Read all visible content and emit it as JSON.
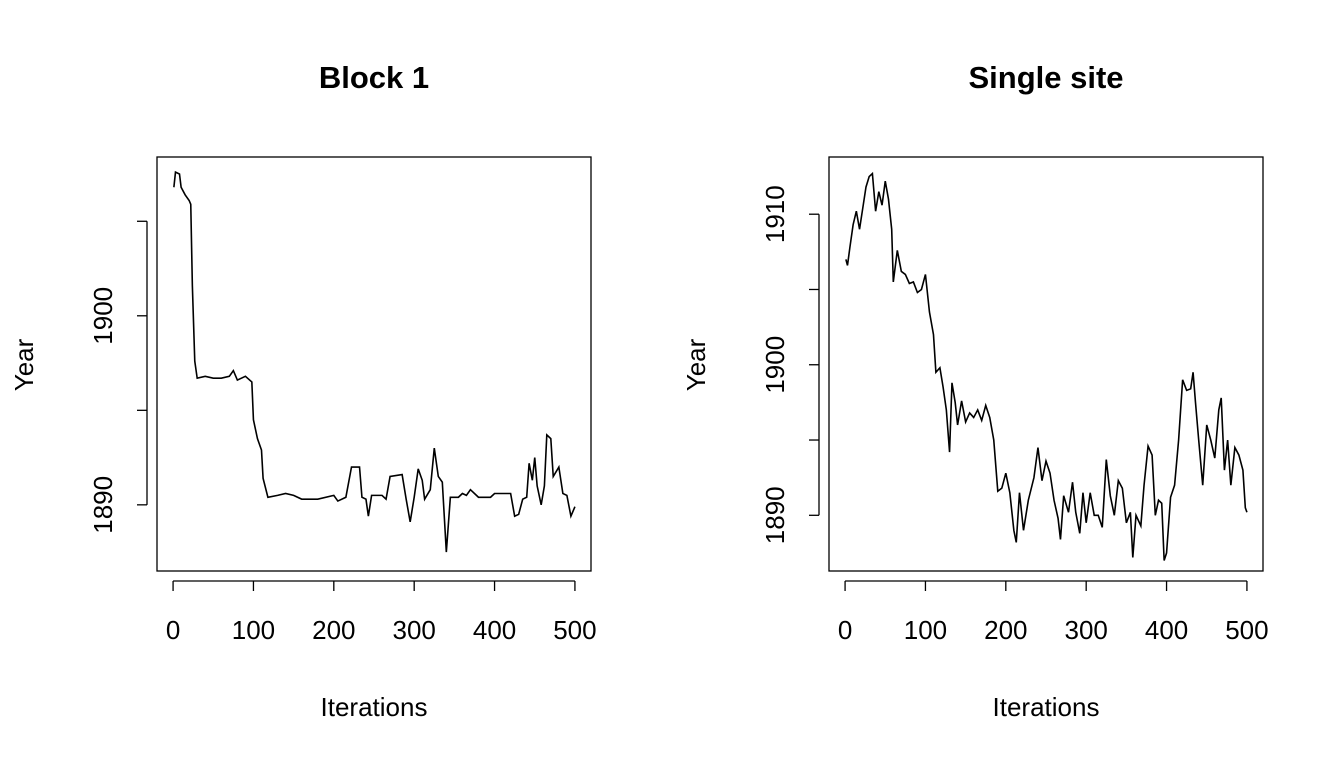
{
  "chart_data": [
    {
      "type": "line",
      "title": "Block 1",
      "xlabel": "Iterations",
      "ylabel": "Year",
      "color": "#000000",
      "x": [
        1,
        3,
        8,
        10,
        15,
        20,
        22,
        24,
        27,
        30,
        40,
        50,
        60,
        70,
        75,
        80,
        90,
        98,
        100,
        105,
        110,
        112,
        118,
        130,
        140,
        150,
        160,
        180,
        200,
        205,
        215,
        222,
        232,
        235,
        240,
        243,
        247,
        260,
        265,
        270,
        285,
        290,
        295,
        300,
        305,
        310,
        313,
        320,
        325,
        330,
        335,
        340,
        345,
        355,
        360,
        365,
        370,
        380,
        395,
        400,
        420,
        425,
        430,
        435,
        440,
        443,
        447,
        450,
        453,
        458,
        462,
        465,
        470,
        473,
        480,
        485,
        490,
        495,
        500
      ],
      "values": [
        1906.8,
        1907.6,
        1907.5,
        1906.8,
        1906.4,
        1906.1,
        1905.9,
        1901.6,
        1897.6,
        1896.7,
        1896.8,
        1896.7,
        1896.7,
        1896.8,
        1897.1,
        1896.6,
        1896.8,
        1896.5,
        1894.5,
        1893.5,
        1892.9,
        1891.4,
        1890.4,
        1890.5,
        1890.6,
        1890.5,
        1890.3,
        1890.3,
        1890.5,
        1890.2,
        1890.4,
        1892.0,
        1892.0,
        1890.4,
        1890.3,
        1889.4,
        1890.5,
        1890.5,
        1890.3,
        1891.5,
        1891.6,
        1890.3,
        1889.1,
        1890.4,
        1891.9,
        1891.3,
        1890.3,
        1890.8,
        1893.0,
        1891.5,
        1891.2,
        1887.5,
        1890.4,
        1890.4,
        1890.6,
        1890.5,
        1890.8,
        1890.4,
        1890.4,
        1890.6,
        1890.6,
        1889.4,
        1889.5,
        1890.3,
        1890.4,
        1892.2,
        1891.3,
        1892.5,
        1891.0,
        1890.0,
        1891.0,
        1893.7,
        1893.5,
        1891.5,
        1892.0,
        1890.6,
        1890.5,
        1889.4,
        1889.9
      ],
      "xlim": [
        -20,
        520
      ],
      "ylim": [
        1886.5,
        1908.4
      ],
      "xticks": [
        0,
        100,
        200,
        300,
        400,
        500
      ],
      "yticks": [
        1890,
        1895,
        1900,
        1905
      ]
    },
    {
      "type": "line",
      "title": "Single site",
      "xlabel": "Iterations",
      "ylabel": "Year",
      "color": "#000000",
      "x": [
        1,
        3,
        6,
        10,
        14,
        18,
        22,
        26,
        30,
        34,
        38,
        42,
        46,
        50,
        54,
        58,
        60,
        65,
        70,
        75,
        80,
        85,
        90,
        95,
        100,
        105,
        110,
        113,
        118,
        122,
        126,
        130,
        133,
        137,
        140,
        145,
        150,
        155,
        160,
        165,
        170,
        175,
        180,
        185,
        190,
        195,
        200,
        205,
        210,
        213,
        217,
        222,
        228,
        235,
        240,
        245,
        250,
        255,
        260,
        265,
        268,
        272,
        278,
        283,
        287,
        292,
        296,
        300,
        305,
        310,
        315,
        320,
        325,
        330,
        335,
        340,
        345,
        350,
        355,
        358,
        362,
        368,
        372,
        377,
        382,
        386,
        390,
        394,
        397,
        400,
        405,
        410,
        415,
        420,
        425,
        430,
        433,
        436,
        440,
        445,
        450,
        455,
        460,
        465,
        468,
        472,
        476,
        480,
        485,
        490,
        495,
        498,
        500
      ],
      "values": [
        1907.0,
        1906.6,
        1907.8,
        1909.3,
        1910.2,
        1909.0,
        1910.4,
        1911.8,
        1912.5,
        1912.7,
        1910.2,
        1911.5,
        1910.6,
        1912.2,
        1911.0,
        1909.0,
        1905.5,
        1907.6,
        1906.2,
        1906.0,
        1905.4,
        1905.5,
        1904.8,
        1905.0,
        1906.0,
        1903.5,
        1902.0,
        1899.5,
        1899.8,
        1898.5,
        1897.0,
        1894.2,
        1898.8,
        1897.5,
        1896.0,
        1897.6,
        1896.2,
        1896.8,
        1896.5,
        1897.0,
        1896.3,
        1897.3,
        1896.5,
        1895.0,
        1891.6,
        1891.8,
        1892.8,
        1891.5,
        1889.0,
        1888.2,
        1891.5,
        1889.0,
        1891.0,
        1892.5,
        1894.5,
        1892.3,
        1893.6,
        1892.8,
        1891.0,
        1889.8,
        1888.4,
        1891.3,
        1890.2,
        1892.2,
        1890.2,
        1888.8,
        1891.5,
        1889.5,
        1891.5,
        1890.0,
        1890.0,
        1889.2,
        1893.7,
        1891.3,
        1890.0,
        1892.3,
        1891.8,
        1889.5,
        1890.2,
        1887.2,
        1890.0,
        1889.3,
        1892.0,
        1894.6,
        1894.0,
        1890.0,
        1891.0,
        1890.8,
        1887.0,
        1887.5,
        1891.2,
        1892.0,
        1895.0,
        1899.0,
        1898.3,
        1898.4,
        1899.5,
        1897.5,
        1895.0,
        1892.0,
        1896.0,
        1895.0,
        1893.8,
        1897.0,
        1897.8,
        1893.0,
        1895.0,
        1892.0,
        1894.5,
        1894.0,
        1893.0,
        1890.5,
        1890.2
      ],
      "xlim": [
        -20,
        520
      ],
      "ylim": [
        1886.3,
        1913.8
      ],
      "xticks": [
        0,
        100,
        200,
        300,
        400,
        500
      ],
      "yticks": [
        1890,
        1895,
        1900,
        1905,
        1910
      ]
    }
  ]
}
